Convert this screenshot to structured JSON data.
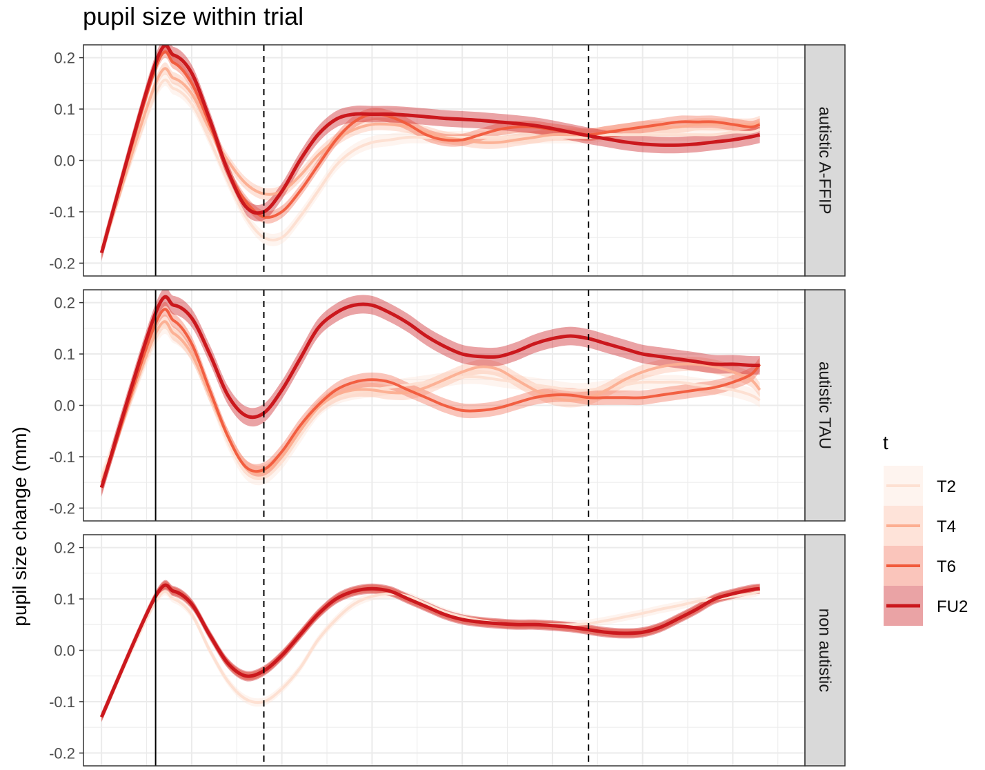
{
  "chart_data": {
    "type": "line",
    "title": "pupil size within trial",
    "xlabel": "",
    "ylabel": "pupil size change (mm)",
    "ylim": [
      -0.225,
      0.225
    ],
    "xlim": [
      -0.1,
      3.9
    ],
    "yticks": [
      -0.2,
      -0.1,
      0.0,
      0.1,
      0.2
    ],
    "ytick_labels": [
      "-0.2",
      "-0.1",
      "0.0",
      "0.1",
      "0.2"
    ],
    "grid": true,
    "vlines": [
      {
        "x": 0.3,
        "style": "solid"
      },
      {
        "x": 0.9,
        "style": "dashed"
      },
      {
        "x": 2.7,
        "style": "dashed"
      }
    ],
    "legend": {
      "title": "t",
      "position": "right",
      "entries": [
        {
          "label": "T2",
          "color": "#fde0d2"
        },
        {
          "label": "T4",
          "color": "#fcae91"
        },
        {
          "label": "T6",
          "color": "#f15a3b"
        },
        {
          "label": "FU2",
          "color": "#cb181d"
        }
      ]
    },
    "x": [
      0.0,
      0.3,
      0.4,
      0.5,
      0.6,
      0.7,
      0.8,
      0.9,
      1.0,
      1.1,
      1.2,
      1.3,
      1.4,
      1.5,
      1.6,
      1.7,
      1.8,
      1.9,
      2.0,
      2.1,
      2.2,
      2.3,
      2.4,
      2.5,
      2.6,
      2.7,
      2.8,
      2.9,
      3.0,
      3.1,
      3.2,
      3.3,
      3.4,
      3.5,
      3.6,
      3.65
    ],
    "panels": [
      {
        "strip": "autistic A-FFIP",
        "series": [
          {
            "name": "T2",
            "values": [
              -0.17,
              0.13,
              0.14,
              0.11,
              0.04,
              -0.04,
              -0.11,
              -0.15,
              -0.15,
              -0.11,
              -0.06,
              -0.01,
              0.02,
              0.035,
              0.04,
              0.045,
              0.045,
              0.045,
              0.045,
              0.045,
              0.045,
              0.045,
              0.045,
              0.045,
              0.045,
              0.045,
              0.05,
              0.05,
              0.05,
              0.05,
              0.05,
              0.05,
              0.05,
              0.055,
              0.055,
              0.06
            ],
            "band": 0.012
          },
          {
            "name": "T4",
            "values": [
              -0.18,
              0.15,
              0.16,
              0.13,
              0.06,
              0.0,
              -0.045,
              -0.065,
              -0.06,
              -0.03,
              0.01,
              0.04,
              0.06,
              0.07,
              0.07,
              0.065,
              0.055,
              0.045,
              0.04,
              0.035,
              0.035,
              0.04,
              0.045,
              0.05,
              0.05,
              0.05,
              0.055,
              0.06,
              0.065,
              0.065,
              0.065,
              0.07,
              0.07,
              0.07,
              0.07,
              0.075
            ],
            "band": 0.012
          },
          {
            "name": "T6",
            "values": [
              -0.18,
              0.18,
              0.19,
              0.15,
              0.07,
              -0.02,
              -0.08,
              -0.11,
              -0.1,
              -0.06,
              -0.01,
              0.04,
              0.075,
              0.09,
              0.085,
              0.07,
              0.05,
              0.04,
              0.04,
              0.05,
              0.06,
              0.065,
              0.065,
              0.06,
              0.055,
              0.05,
              0.055,
              0.06,
              0.065,
              0.07,
              0.075,
              0.075,
              0.075,
              0.07,
              0.065,
              0.07
            ],
            "band": 0.012
          },
          {
            "name": "FU2",
            "values": [
              -0.18,
              0.19,
              0.205,
              0.17,
              0.08,
              -0.02,
              -0.09,
              -0.1,
              -0.06,
              0.0,
              0.05,
              0.08,
              0.09,
              0.09,
              0.09,
              0.088,
              0.085,
              0.082,
              0.08,
              0.078,
              0.075,
              0.072,
              0.068,
              0.062,
              0.055,
              0.048,
              0.042,
              0.036,
              0.032,
              0.03,
              0.03,
              0.032,
              0.036,
              0.04,
              0.046,
              0.05
            ],
            "band": 0.016
          }
        ]
      },
      {
        "strip": "autistic TAU",
        "series": [
          {
            "name": "T2",
            "values": [
              -0.14,
              0.13,
              0.135,
              0.1,
              0.02,
              -0.07,
              -0.13,
              -0.14,
              -0.11,
              -0.06,
              -0.01,
              0.015,
              0.025,
              0.03,
              0.035,
              0.04,
              0.045,
              0.05,
              0.055,
              0.055,
              0.05,
              0.045,
              0.04,
              0.035,
              0.03,
              0.03,
              0.035,
              0.04,
              0.045,
              0.045,
              0.045,
              0.04,
              0.035,
              0.03,
              0.02,
              0.01
            ],
            "band": 0.014
          },
          {
            "name": "T4",
            "values": [
              -0.15,
              0.14,
              0.14,
              0.1,
              0.02,
              -0.06,
              -0.12,
              -0.13,
              -0.1,
              -0.05,
              -0.005,
              0.02,
              0.03,
              0.03,
              0.025,
              0.025,
              0.035,
              0.05,
              0.065,
              0.075,
              0.07,
              0.05,
              0.03,
              0.015,
              0.01,
              0.015,
              0.03,
              0.05,
              0.065,
              0.075,
              0.08,
              0.08,
              0.075,
              0.065,
              0.05,
              0.03
            ],
            "band": 0.014
          },
          {
            "name": "T6",
            "values": [
              -0.16,
              0.16,
              0.165,
              0.12,
              0.03,
              -0.06,
              -0.12,
              -0.125,
              -0.09,
              -0.04,
              0.0,
              0.03,
              0.045,
              0.05,
              0.045,
              0.03,
              0.015,
              0.0,
              -0.01,
              -0.01,
              -0.005,
              0.005,
              0.015,
              0.02,
              0.02,
              0.015,
              0.015,
              0.015,
              0.015,
              0.02,
              0.025,
              0.03,
              0.035,
              0.045,
              0.06,
              0.08
            ],
            "band": 0.014
          },
          {
            "name": "FU2",
            "values": [
              -0.16,
              0.18,
              0.195,
              0.17,
              0.1,
              0.02,
              -0.02,
              -0.015,
              0.03,
              0.09,
              0.15,
              0.18,
              0.195,
              0.195,
              0.18,
              0.16,
              0.135,
              0.115,
              0.1,
              0.095,
              0.095,
              0.105,
              0.12,
              0.13,
              0.135,
              0.13,
              0.12,
              0.11,
              0.1,
              0.095,
              0.09,
              0.085,
              0.08,
              0.08,
              0.078,
              0.078
            ],
            "band": 0.018
          }
        ]
      },
      {
        "strip": "non autistic",
        "series": [
          {
            "name": "T2",
            "values": [
              -0.13,
              0.095,
              0.1,
              0.07,
              0.0,
              -0.06,
              -0.095,
              -0.1,
              -0.075,
              -0.035,
              0.02,
              0.06,
              0.09,
              0.105,
              0.11,
              0.105,
              0.09,
              0.075,
              0.065,
              0.058,
              0.053,
              0.05,
              0.05,
              0.05,
              0.05,
              0.052,
              0.058,
              0.065,
              0.072,
              0.08,
              0.087,
              0.095,
              0.1,
              0.105,
              0.11,
              0.115
            ],
            "band": 0.008
          },
          {
            "name": "T4",
            "values": [
              -0.13,
              0.105,
              0.115,
              0.09,
              0.03,
              -0.025,
              -0.05,
              -0.04,
              -0.01,
              0.03,
              0.07,
              0.1,
              0.115,
              0.12,
              0.115,
              0.1,
              0.085,
              0.07,
              0.06,
              0.055,
              0.052,
              0.05,
              0.05,
              0.048,
              0.045,
              0.04,
              0.035,
              0.033,
              0.035,
              0.045,
              0.062,
              0.08,
              0.1,
              0.11,
              0.118,
              0.12
            ],
            "band": 0.008
          },
          {
            "name": "T6",
            "values": [
              -0.13,
              0.105,
              0.115,
              0.09,
              0.03,
              -0.025,
              -0.05,
              -0.04,
              -0.01,
              0.03,
              0.07,
              0.1,
              0.115,
              0.12,
              0.115,
              0.1,
              0.085,
              0.07,
              0.06,
              0.055,
              0.052,
              0.05,
              0.05,
              0.048,
              0.045,
              0.04,
              0.035,
              0.033,
              0.035,
              0.045,
              0.062,
              0.08,
              0.1,
              0.11,
              0.118,
              0.12
            ],
            "band": 0.008
          },
          {
            "name": "FU2",
            "values": [
              -0.13,
              0.105,
              0.115,
              0.09,
              0.03,
              -0.025,
              -0.05,
              -0.04,
              -0.01,
              0.03,
              0.07,
              0.1,
              0.115,
              0.12,
              0.115,
              0.1,
              0.085,
              0.07,
              0.06,
              0.055,
              0.052,
              0.05,
              0.05,
              0.048,
              0.045,
              0.04,
              0.035,
              0.033,
              0.035,
              0.045,
              0.062,
              0.08,
              0.1,
              0.11,
              0.118,
              0.12
            ],
            "band": 0.01
          }
        ]
      }
    ]
  }
}
